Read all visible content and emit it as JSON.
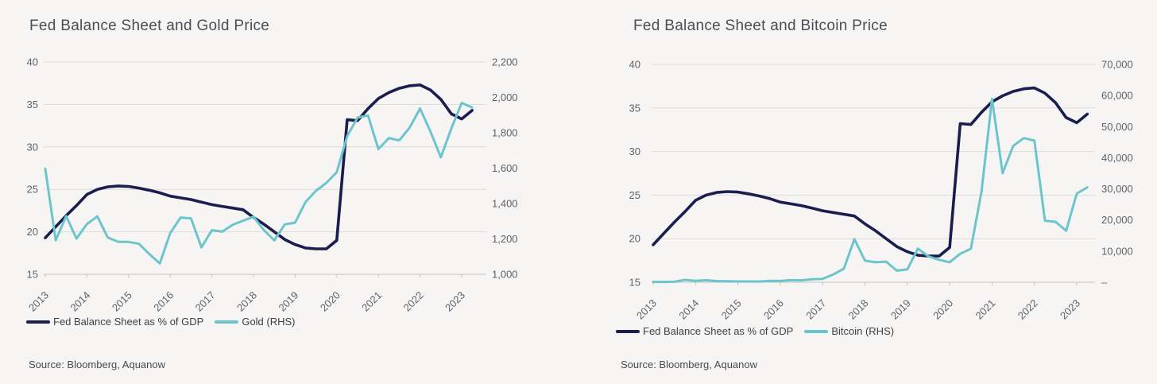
{
  "page": {
    "background": "#f6f5f3"
  },
  "colors": {
    "fed_line": "#191d50",
    "gold_line": "#6cc5cb",
    "bitcoin_line": "#6cc5cb",
    "gridline": "#dbdad8",
    "axis_line": "#c6c5c3",
    "tick_label": "#5e6268",
    "title_text": "#494d55"
  },
  "charts": [
    {
      "source": "Source: Bloomberg, Aquanow"
    },
    {
      "source": "Source: Bloomberg, Aquanow"
    }
  ],
  "chart_data": [
    {
      "type": "line",
      "title": "Fed Balance Sheet and Gold Price",
      "x_ticks": [
        "2013",
        "2014",
        "2015",
        "2016",
        "2017",
        "2018",
        "2019",
        "2020",
        "2021",
        "2022",
        "2023"
      ],
      "x": [
        2013.0,
        2013.25,
        2013.5,
        2013.75,
        2014.0,
        2014.25,
        2014.5,
        2014.75,
        2015.0,
        2015.25,
        2015.5,
        2015.75,
        2016.0,
        2016.25,
        2016.5,
        2016.75,
        2017.0,
        2017.25,
        2017.5,
        2017.75,
        2018.0,
        2018.25,
        2018.5,
        2018.75,
        2019.0,
        2019.25,
        2019.5,
        2019.75,
        2020.0,
        2020.25,
        2020.5,
        2020.75,
        2021.0,
        2021.25,
        2021.5,
        2021.75,
        2022.0,
        2022.25,
        2022.5,
        2022.75,
        2023.0,
        2023.25
      ],
      "series": [
        {
          "name": "Fed Balance Sheet as % of GDP",
          "axis": "left",
          "color": "#191d50",
          "values": [
            19.3,
            20.6,
            21.9,
            23.1,
            24.4,
            25.0,
            25.3,
            25.4,
            25.35,
            25.15,
            24.9,
            24.6,
            24.2,
            24.0,
            23.8,
            23.5,
            23.2,
            23.0,
            22.8,
            22.6,
            21.7,
            20.9,
            20.0,
            19.1,
            18.5,
            18.1,
            18.0,
            18.0,
            19.0,
            33.2,
            33.1,
            34.5,
            35.7,
            36.4,
            36.9,
            37.2,
            37.3,
            36.7,
            35.6,
            33.9,
            33.3,
            34.3
          ]
        },
        {
          "name": "Gold (RHS)",
          "axis": "right",
          "color": "#6cc5cb",
          "values": [
            1597,
            1192,
            1329,
            1202,
            1284,
            1327,
            1208,
            1184,
            1183,
            1172,
            1114,
            1061,
            1233,
            1321,
            1316,
            1152,
            1249,
            1242,
            1280,
            1303,
            1325,
            1250,
            1192,
            1282,
            1292,
            1409,
            1472,
            1517,
            1577,
            1781,
            1886,
            1898,
            1708,
            1770,
            1757,
            1829,
            1937,
            1807,
            1661,
            1824,
            1969,
            1943
          ]
        }
      ],
      "left_axis": {
        "ticks": [
          "40",
          "35",
          "30",
          "25",
          "20",
          "15"
        ],
        "range": [
          15,
          40
        ]
      },
      "right_axis": {
        "ticks": [
          "2,200",
          "2,000",
          "1,800",
          "1,600",
          "1,400",
          "1,200",
          "1,000"
        ],
        "range": [
          1000,
          2200
        ]
      },
      "grid": "horizontal",
      "legend_position": "bottom"
    },
    {
      "type": "line",
      "title": "Fed Balance Sheet and Bitcoin Price",
      "x_ticks": [
        "2013",
        "2014",
        "2015",
        "2016",
        "2017",
        "2018",
        "2019",
        "2020",
        "2021",
        "2022",
        "2023"
      ],
      "x": [
        2013.0,
        2013.25,
        2013.5,
        2013.75,
        2014.0,
        2014.25,
        2014.5,
        2014.75,
        2015.0,
        2015.25,
        2015.5,
        2015.75,
        2016.0,
        2016.25,
        2016.5,
        2016.75,
        2017.0,
        2017.25,
        2017.5,
        2017.75,
        2018.0,
        2018.25,
        2018.5,
        2018.75,
        2019.0,
        2019.25,
        2019.5,
        2019.75,
        2020.0,
        2020.25,
        2020.5,
        2020.75,
        2021.0,
        2021.25,
        2021.5,
        2021.75,
        2022.0,
        2022.25,
        2022.5,
        2022.75,
        2023.0,
        2023.25
      ],
      "series": [
        {
          "name": "Fed Balance Sheet as % of GDP",
          "axis": "left",
          "color": "#191d50",
          "values": [
            19.3,
            20.6,
            21.9,
            23.1,
            24.4,
            25.0,
            25.3,
            25.4,
            25.35,
            25.15,
            24.9,
            24.6,
            24.2,
            24.0,
            23.8,
            23.5,
            23.2,
            23.0,
            22.8,
            22.6,
            21.7,
            20.9,
            20.0,
            19.1,
            18.5,
            18.1,
            18.0,
            18.0,
            19.0,
            33.2,
            33.1,
            34.5,
            35.7,
            36.4,
            36.9,
            37.2,
            37.3,
            36.7,
            35.6,
            33.9,
            33.3,
            34.3
          ]
        },
        {
          "name": "Bitcoin (RHS)",
          "axis": "right",
          "color": "#6cc5cb",
          "values": [
            93,
            97,
            141,
            754,
            458,
            640,
            387,
            320,
            244,
            263,
            236,
            430,
            416,
            673,
            609,
            963,
            1080,
            2480,
            4338,
            13850,
            6928,
            6404,
            6625,
            3742,
            4103,
            10817,
            8293,
            7193,
            6438,
            9137,
            10784,
            29001,
            58918,
            35040,
            43790,
            46306,
            45538,
            19784,
            19425,
            16547,
            28478,
            30477
          ]
        }
      ],
      "left_axis": {
        "ticks": [
          "40",
          "35",
          "30",
          "25",
          "20",
          "15"
        ],
        "range": [
          15,
          40
        ]
      },
      "right_axis": {
        "ticks": [
          "70,000",
          "60,000",
          "50,000",
          "40,000",
          "30,000",
          "20,000",
          "10,000",
          "–"
        ],
        "range": [
          0,
          70000
        ]
      },
      "grid": "horizontal",
      "legend_position": "bottom"
    }
  ]
}
